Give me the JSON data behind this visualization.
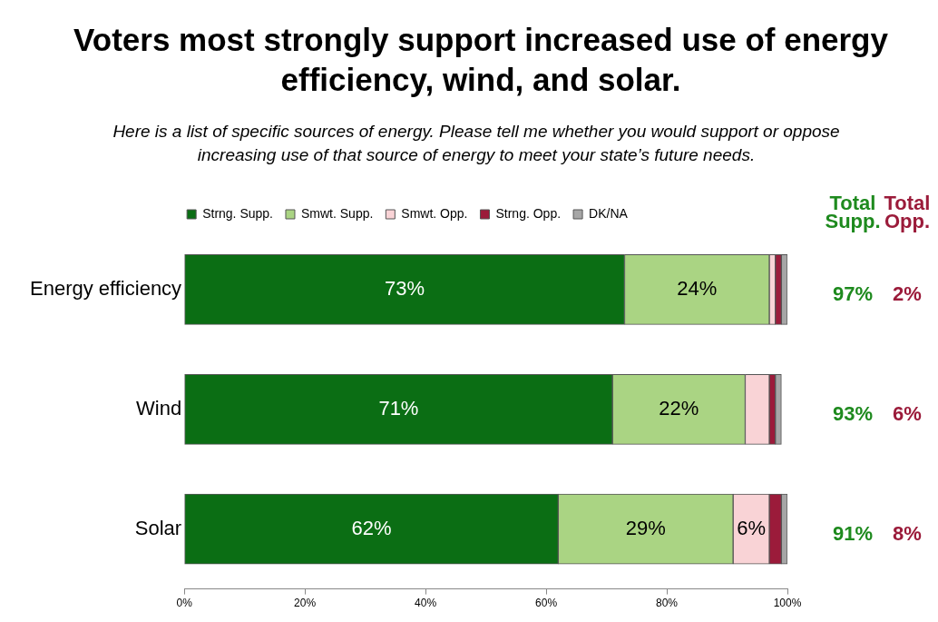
{
  "chart_data": {
    "type": "bar",
    "orientation": "horizontal",
    "stacked": true,
    "title": "Voters most strongly support increased use of energy efficiency, wind, and solar.",
    "subtitle": "Here is a list of specific sources of energy.  Please tell me whether you would support or oppose increasing use of that source of energy to meet your state’s future needs.",
    "categories": [
      "Energy efficiency",
      "Wind",
      "Solar"
    ],
    "series": [
      {
        "name": "Strng. Supp.",
        "color": "#0b6e14",
        "values": [
          73,
          71,
          62
        ],
        "value_labels": [
          "73%",
          "71%",
          "62%"
        ]
      },
      {
        "name": "Smwt. Supp.",
        "color": "#aad483",
        "values": [
          24,
          22,
          29
        ],
        "value_labels": [
          "24%",
          "22%",
          "29%"
        ]
      },
      {
        "name": "Smwt. Opp.",
        "color": "#f9d3d6",
        "values": [
          1,
          4,
          6
        ],
        "value_labels": [
          null,
          null,
          "6%"
        ]
      },
      {
        "name": "Strng. Opp.",
        "color": "#9b1b3a",
        "values": [
          1,
          1,
          2
        ],
        "value_labels": [
          null,
          null,
          null
        ]
      },
      {
        "name": "DK/NA",
        "color": "#a6a6a6",
        "values": [
          1,
          1,
          1
        ],
        "value_labels": [
          null,
          null,
          null
        ]
      }
    ],
    "xlim": [
      0,
      100
    ],
    "xticks": [
      {
        "value": 0,
        "label": "0%"
      },
      {
        "value": 20,
        "label": "20%"
      },
      {
        "value": 40,
        "label": "40%"
      },
      {
        "value": 60,
        "label": "60%"
      },
      {
        "value": 80,
        "label": "80%"
      },
      {
        "value": 100,
        "label": "100%"
      }
    ],
    "grid": false,
    "legend": "top",
    "annotations": [
      "Total Supp.",
      "Total Opp.",
      "97%",
      "2%",
      "93%",
      "6%",
      "91%",
      "8%"
    ]
  }
}
